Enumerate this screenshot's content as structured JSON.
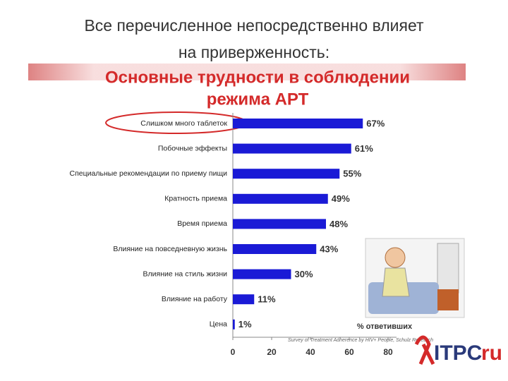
{
  "slide_title": [
    "Все перечисленное непосредственно влияет",
    "на приверженность:"
  ],
  "chart_data": {
    "type": "bar",
    "orientation": "horizontal",
    "title": [
      "Основные трудности в соблюдении",
      "режима АРТ"
    ],
    "categories": [
      "Слишком много таблеток",
      "Побочные эффекты",
      "Специальные рекомендации по приему пищи",
      "Кратность приема",
      "Время приема",
      "Влияние на повседневную жизнь",
      "Влияние на стиль жизни",
      "Влияние на работу",
      "Цена"
    ],
    "values": [
      67,
      61,
      55,
      49,
      48,
      43,
      30,
      11,
      1
    ],
    "value_labels": [
      "67%",
      "61%",
      "55%",
      "49%",
      "48%",
      "43%",
      "30%",
      "11%",
      "1%"
    ],
    "color": "#1a1ad6",
    "xlim": [
      0,
      80
    ],
    "xticks": [
      0,
      20,
      40,
      60,
      80
    ],
    "xlabel": "% ответивших",
    "source": "Survey of Treatment Adherence by HIV+ People, Schulz Research"
  },
  "logo": {
    "name": "ITPC",
    "suffix": "ru"
  }
}
